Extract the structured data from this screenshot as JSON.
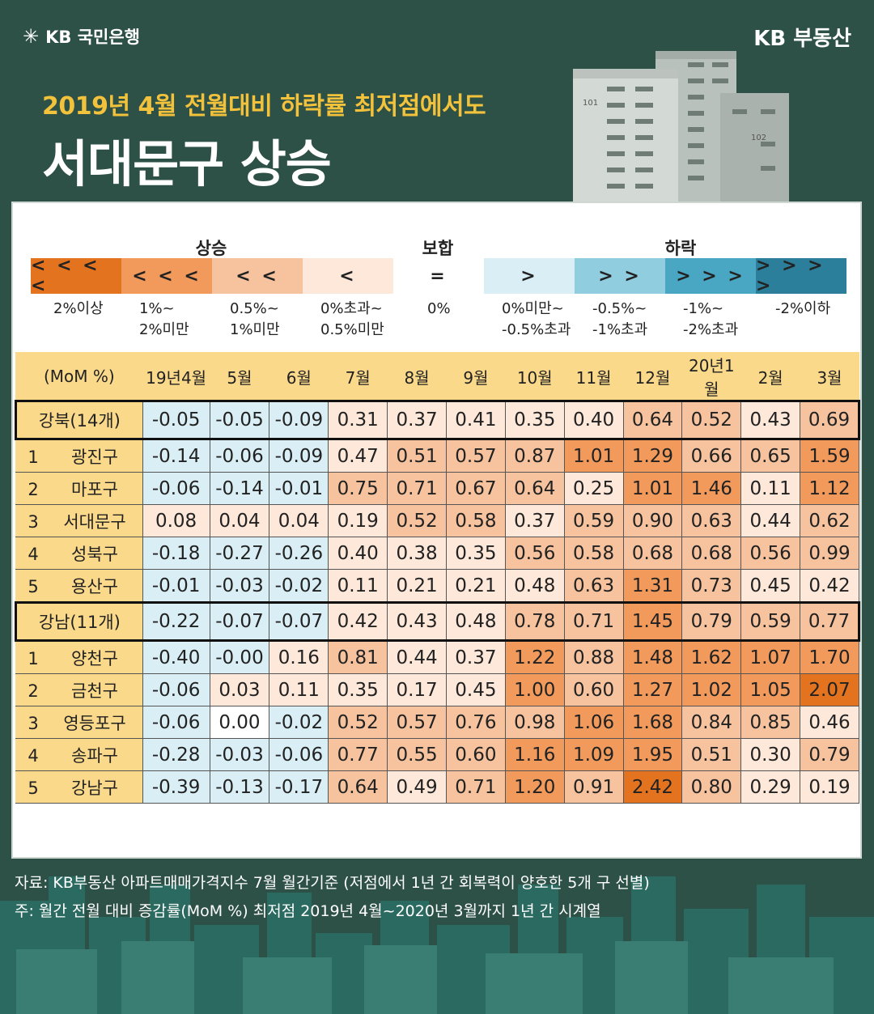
{
  "header": {
    "bank_logo": "KB 국민은행",
    "brand": "KB 부동산",
    "subtitle": "2019년 4월 전월대비 하락률 최저점에서도",
    "title": "서대문구 상승",
    "building_labels": [
      "101",
      "102"
    ]
  },
  "legend": {
    "groups": [
      {
        "label": "상승"
      },
      {
        "label": "보합"
      },
      {
        "label": "하락"
      }
    ],
    "items": [
      {
        "symbol": "< < < <",
        "range1": "2%이상",
        "range2": "",
        "color": "#e4731f"
      },
      {
        "symbol": "< < <",
        "range1": "1%~",
        "range2": "2%미만",
        "color": "#f29a5c"
      },
      {
        "symbol": "< <",
        "range1": "0.5%~",
        "range2": "1%미만",
        "color": "#f7c39e"
      },
      {
        "symbol": "<",
        "range1": "0%초과~",
        "range2": "0.5%미만",
        "color": "#fde8da"
      },
      {
        "symbol": "=",
        "range1": "0%",
        "range2": "",
        "color": "#ffffff"
      },
      {
        "symbol": ">",
        "range1": "0%미만~",
        "range2": "-0.5%초과",
        "color": "#daeff5"
      },
      {
        "symbol": "> >",
        "range1": "-0.5%~",
        "range2": "-1%초과",
        "color": "#8fcddf"
      },
      {
        "symbol": "> > >",
        "range1": "-1%~",
        "range2": "-2%초과",
        "color": "#4aa7c4"
      },
      {
        "symbol": "> > > >",
        "range1": "-2%이하",
        "range2": "",
        "color": "#2c7f9a"
      }
    ]
  },
  "chart_data": {
    "type": "table",
    "corner_label": "(MoM %)",
    "columns": [
      "19년4월",
      "5월",
      "6월",
      "7월",
      "8월",
      "9월",
      "10월",
      "11월",
      "12월",
      "20년1월",
      "2월",
      "3월"
    ],
    "rows": [
      {
        "rank": "",
        "name": "강북(14개)",
        "group": true,
        "values": [
          -0.05,
          -0.05,
          -0.09,
          0.31,
          0.37,
          0.41,
          0.35,
          0.4,
          0.64,
          0.52,
          0.43,
          0.69
        ]
      },
      {
        "rank": "1",
        "name": "광진구",
        "group": false,
        "values": [
          -0.14,
          -0.06,
          -0.09,
          0.47,
          0.51,
          0.57,
          0.87,
          1.01,
          1.29,
          0.66,
          0.65,
          1.59
        ]
      },
      {
        "rank": "2",
        "name": "마포구",
        "group": false,
        "values": [
          -0.06,
          -0.14,
          -0.01,
          0.75,
          0.71,
          0.67,
          0.64,
          0.25,
          1.01,
          1.46,
          0.11,
          1.12
        ]
      },
      {
        "rank": "3",
        "name": "서대문구",
        "group": false,
        "values": [
          0.08,
          0.04,
          0.04,
          0.19,
          0.52,
          0.58,
          0.37,
          0.59,
          0.9,
          0.63,
          0.44,
          0.62
        ]
      },
      {
        "rank": "4",
        "name": "성북구",
        "group": false,
        "values": [
          -0.18,
          -0.27,
          -0.26,
          0.4,
          0.38,
          0.35,
          0.56,
          0.58,
          0.68,
          0.68,
          0.56,
          0.99
        ]
      },
      {
        "rank": "5",
        "name": "용산구",
        "group": false,
        "values": [
          -0.01,
          -0.03,
          -0.02,
          0.11,
          0.21,
          0.21,
          0.48,
          0.63,
          1.31,
          0.73,
          0.45,
          0.42
        ]
      },
      {
        "rank": "",
        "name": "강남(11개)",
        "group": true,
        "values": [
          -0.22,
          -0.07,
          -0.07,
          0.42,
          0.43,
          0.48,
          0.78,
          0.71,
          1.45,
          0.79,
          0.59,
          0.77
        ]
      },
      {
        "rank": "1",
        "name": "양천구",
        "group": false,
        "values": [
          -0.4,
          -0.0,
          0.16,
          0.81,
          0.44,
          0.37,
          1.22,
          0.88,
          1.48,
          1.62,
          1.07,
          1.7
        ]
      },
      {
        "rank": "2",
        "name": "금천구",
        "group": false,
        "values": [
          -0.06,
          0.03,
          0.11,
          0.35,
          0.17,
          0.45,
          1.0,
          0.6,
          1.27,
          1.02,
          1.05,
          2.07
        ]
      },
      {
        "rank": "3",
        "name": "영등포구",
        "group": false,
        "values": [
          -0.06,
          0.0,
          -0.02,
          0.52,
          0.57,
          0.76,
          0.98,
          1.06,
          1.68,
          0.84,
          0.85,
          0.46
        ]
      },
      {
        "rank": "4",
        "name": "송파구",
        "group": false,
        "values": [
          -0.28,
          -0.03,
          -0.06,
          0.77,
          0.55,
          0.6,
          1.16,
          1.09,
          1.95,
          0.51,
          0.3,
          0.79
        ]
      },
      {
        "rank": "5",
        "name": "강남구",
        "group": false,
        "values": [
          -0.39,
          -0.13,
          -0.17,
          0.64,
          0.49,
          0.71,
          1.2,
          0.91,
          2.42,
          0.8,
          0.29,
          0.19
        ]
      }
    ],
    "value_labels": [
      [
        "-0.05",
        "-0.05",
        "-0.09",
        "0.31",
        "0.37",
        "0.41",
        "0.35",
        "0.40",
        "0.64",
        "0.52",
        "0.43",
        "0.69"
      ],
      [
        "-0.14",
        "-0.06",
        "-0.09",
        "0.47",
        "0.51",
        "0.57",
        "0.87",
        "1.01",
        "1.29",
        "0.66",
        "0.65",
        "1.59"
      ],
      [
        "-0.06",
        "-0.14",
        "-0.01",
        "0.75",
        "0.71",
        "0.67",
        "0.64",
        "0.25",
        "1.01",
        "1.46",
        "0.11",
        "1.12"
      ],
      [
        "0.08",
        "0.04",
        "0.04",
        "0.19",
        "0.52",
        "0.58",
        "0.37",
        "0.59",
        "0.90",
        "0.63",
        "0.44",
        "0.62"
      ],
      [
        "-0.18",
        "-0.27",
        "-0.26",
        "0.40",
        "0.38",
        "0.35",
        "0.56",
        "0.58",
        "0.68",
        "0.68",
        "0.56",
        "0.99"
      ],
      [
        "-0.01",
        "-0.03",
        "-0.02",
        "0.11",
        "0.21",
        "0.21",
        "0.48",
        "0.63",
        "1.31",
        "0.73",
        "0.45",
        "0.42"
      ],
      [
        "-0.22",
        "-0.07",
        "-0.07",
        "0.42",
        "0.43",
        "0.48",
        "0.78",
        "0.71",
        "1.45",
        "0.79",
        "0.59",
        "0.77"
      ],
      [
        "-0.40",
        "-0.00",
        "0.16",
        "0.81",
        "0.44",
        "0.37",
        "1.22",
        "0.88",
        "1.48",
        "1.62",
        "1.07",
        "1.70"
      ],
      [
        "-0.06",
        "0.03",
        "0.11",
        "0.35",
        "0.17",
        "0.45",
        "1.00",
        "0.60",
        "1.27",
        "1.02",
        "1.05",
        "2.07"
      ],
      [
        "-0.06",
        "0.00",
        "-0.02",
        "0.52",
        "0.57",
        "0.76",
        "0.98",
        "1.06",
        "1.68",
        "0.84",
        "0.85",
        "0.46"
      ],
      [
        "-0.28",
        "-0.03",
        "-0.06",
        "0.77",
        "0.55",
        "0.60",
        "1.16",
        "1.09",
        "1.95",
        "0.51",
        "0.30",
        "0.79"
      ],
      [
        "-0.39",
        "-0.13",
        "-0.17",
        "0.64",
        "0.49",
        "0.71",
        "1.20",
        "0.91",
        "2.42",
        "0.80",
        "0.29",
        "0.19"
      ]
    ]
  },
  "footnotes": {
    "source": "자료: KB부동산 아파트매매가격지수 7월 월간기준 (저점에서 1년 간 회복력이 양호한 5개 구 선별)",
    "note": "주: 월간 전월 대비 증감률(MoM %) 최저점 2019년 4월~2020년 3월까지 1년 간 시계열"
  }
}
